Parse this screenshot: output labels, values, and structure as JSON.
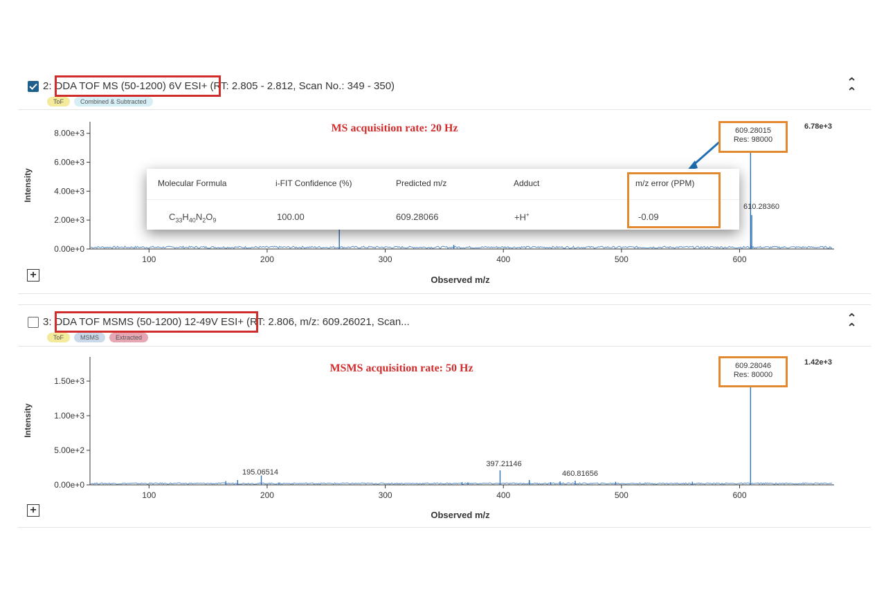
{
  "panels": [
    {
      "checked": true,
      "index_label": "2:",
      "title_boxed": "DDA TOF MS (50-1200) 6V ESI+",
      "title_rest": "(RT: 2.805 - 2.812, Scan No.: 349 - 350)",
      "tags": [
        "ToF",
        "Combined & Subtracted"
      ],
      "rate_label": "MS acquisition rate: 20 Hz",
      "max_intensity": "6.78e+3",
      "peak_box": {
        "mz": "609.28015",
        "res": "Res: 98000"
      },
      "peak_label_610": "610.28360",
      "y_label": "Intensity",
      "x_label": "Observed m/z",
      "y_ticks": [
        "0.00e+0",
        "2.00e+3",
        "4.00e+3",
        "6.00e+3",
        "8.00e+3"
      ],
      "x_ticks": [
        "100",
        "200",
        "300",
        "400",
        "500",
        "600"
      ]
    },
    {
      "checked": false,
      "index_label": "3:",
      "title_boxed": "DDA TOF MSMS (50-1200) 12-49V ESI+",
      "title_rest": "(RT: 2.806, m/z: 609.26021, Scan...",
      "tags": [
        "ToF",
        "MSMS",
        "Extracted"
      ],
      "rate_label": "MSMS acquisition rate: 50 Hz",
      "max_intensity": "1.42e+3",
      "peak_box": {
        "mz": "609.28046",
        "res": "Res: 80000"
      },
      "peak_labels": [
        "195.06514",
        "397.21146",
        "460.81656"
      ],
      "y_label": "Intensity",
      "x_label": "Observed m/z",
      "y_ticks": [
        "0.00e+0",
        "5.00e+2",
        "1.00e+3",
        "1.50e+3"
      ],
      "x_ticks": [
        "100",
        "200",
        "300",
        "400",
        "500",
        "600"
      ]
    }
  ],
  "popup": {
    "headers": [
      "Molecular Formula",
      "i-FIT Confidence (%)",
      "Predicted m/z",
      "Adduct",
      "m/z error (PPM)"
    ],
    "formula": {
      "c": "C",
      "c_n": "33",
      "h": "H",
      "h_n": "40",
      "n": "N",
      "n_n": "2",
      "o": "O",
      "o_n": "9"
    },
    "confidence": "100.00",
    "predicted": "609.28066",
    "adduct": "+H",
    "adduct_sup": "+",
    "error": "-0.09"
  },
  "chart_data": [
    {
      "type": "line",
      "title": "MS acquisition rate: 20 Hz",
      "xlabel": "Observed m/z",
      "ylabel": "Intensity",
      "xlim": [
        50,
        680
      ],
      "ylim": [
        0,
        8800
      ],
      "peaks": [
        {
          "mz": 261.1,
          "intensity": 1350
        },
        {
          "mz": 358,
          "intensity": 280
        },
        {
          "mz": 609.28015,
          "intensity": 6780
        },
        {
          "mz": 610.2836,
          "intensity": 2350
        }
      ]
    },
    {
      "type": "line",
      "title": "MSMS acquisition rate: 50 Hz",
      "xlabel": "Observed m/z",
      "ylabel": "Intensity",
      "xlim": [
        50,
        680
      ],
      "ylim": [
        0,
        1850
      ],
      "peaks": [
        {
          "mz": 165,
          "intensity": 55
        },
        {
          "mz": 175,
          "intensity": 70
        },
        {
          "mz": 195.06514,
          "intensity": 135
        },
        {
          "mz": 210,
          "intensity": 25
        },
        {
          "mz": 365,
          "intensity": 40
        },
        {
          "mz": 370,
          "intensity": 35
        },
        {
          "mz": 397.21146,
          "intensity": 210
        },
        {
          "mz": 422,
          "intensity": 70
        },
        {
          "mz": 440,
          "intensity": 40
        },
        {
          "mz": 448,
          "intensity": 50
        },
        {
          "mz": 460.81656,
          "intensity": 60
        },
        {
          "mz": 495,
          "intensity": 45
        },
        {
          "mz": 560,
          "intensity": 45
        },
        {
          "mz": 609.28046,
          "intensity": 1420
        }
      ]
    }
  ]
}
